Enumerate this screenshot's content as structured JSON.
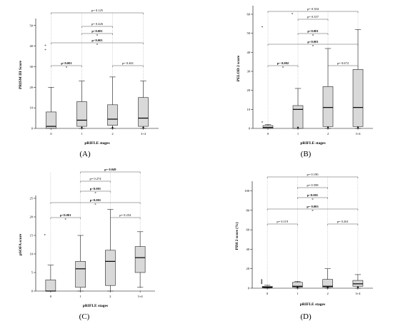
{
  "chart_data": [
    {
      "panel_label": "(A)",
      "type": "box",
      "xlabel": "pRIFLE stages",
      "ylabel": "PRISM III Score",
      "categories": [
        "0",
        "1",
        "2",
        "3+4"
      ],
      "ylim": [
        0,
        52
      ],
      "yticks": [
        0,
        10,
        20,
        30,
        40,
        50
      ],
      "yticklabels": [
        "0",
        "10",
        "20",
        "30",
        "40",
        "50"
      ],
      "boxes": [
        {
          "min": 0,
          "q1": 0,
          "median": 1,
          "q3": 8,
          "max": 20
        },
        {
          "min": 0,
          "q1": 1,
          "median": 4,
          "q3": 13,
          "max": 23
        },
        {
          "min": 0,
          "q1": 1.5,
          "median": 4.5,
          "q3": 11.5,
          "max": 25
        },
        {
          "min": 0,
          "q1": 1,
          "median": 5,
          "q3": 15,
          "max": 23
        }
      ],
      "outliers": [
        [
          0,
          38
        ],
        [
          0,
          40
        ]
      ],
      "below_markers": [
        1,
        2,
        3
      ],
      "comparisons": [
        {
          "from": 0,
          "to": 3,
          "label": "p= 0.125",
          "bold": false,
          "asterisk": false
        },
        {
          "from": 1,
          "to": 2,
          "label": "p= 0.426",
          "bold": false,
          "asterisk": false
        },
        {
          "from": 1,
          "to": 2,
          "label": "p<0.001",
          "bold": true,
          "asterisk": true
        },
        {
          "from": 0,
          "to": 3,
          "label": "p<0.001",
          "bold": true,
          "asterisk": true
        },
        {
          "from": 0,
          "to": 1,
          "label": "p<0.001",
          "bold": true,
          "asterisk": true
        },
        {
          "from": 2,
          "to": 3,
          "label": "p= 0.461",
          "bold": false,
          "asterisk": false
        }
      ]
    },
    {
      "panel_label": "(B)",
      "type": "box",
      "xlabel": "pRIFLE stages",
      "ylabel": "PELOD 2 score",
      "categories": [
        "0",
        "1",
        "2",
        "3+4"
      ],
      "ylim": [
        0,
        63
      ],
      "yticks": [
        0,
        10,
        20,
        30,
        40,
        50,
        60
      ],
      "yticklabels": [
        "0",
        "10",
        "20",
        "30",
        "40",
        "50",
        "60"
      ],
      "boxes": [
        {
          "min": 0,
          "q1": 0,
          "median": 0.5,
          "q3": 1.5,
          "max": 2
        },
        {
          "min": 0,
          "q1": 0,
          "median": 10,
          "q3": 12,
          "max": 21
        },
        {
          "min": 0,
          "q1": 1,
          "median": 11,
          "q3": 22,
          "max": 42
        },
        {
          "min": 0,
          "q1": 1,
          "median": 11,
          "q3": 31,
          "max": 52
        }
      ],
      "outliers": [
        [
          0,
          3
        ],
        [
          0,
          53
        ],
        [
          1,
          60
        ]
      ],
      "below_markers": [
        1,
        2,
        3
      ],
      "comparisons": [
        {
          "from": 0,
          "to": 3,
          "label": "p= 0.304",
          "bold": false,
          "asterisk": false
        },
        {
          "from": 1,
          "to": 2,
          "label": "p= 0.357",
          "bold": false,
          "asterisk": false
        },
        {
          "from": 1,
          "to": 2,
          "label": "p<0.001",
          "bold": true,
          "asterisk": true
        },
        {
          "from": 0,
          "to": 3,
          "label": "p<0.001",
          "bold": true,
          "asterisk": true
        },
        {
          "from": 0,
          "to": 1,
          "label": "p= 0.002",
          "bold": true,
          "asterisk": true
        },
        {
          "from": 2,
          "to": 3,
          "label": "p= 0.672",
          "bold": false,
          "asterisk": false
        }
      ]
    },
    {
      "panel_label": "(C)",
      "type": "box",
      "xlabel": "pRIFLE stages",
      "ylabel": "pSOFA score",
      "categories": [
        "0",
        "1",
        "2",
        "3+4"
      ],
      "ylim": [
        0,
        25
      ],
      "yticks": [
        0,
        5,
        10,
        15,
        20,
        25
      ],
      "yticklabels": [
        "0",
        "5",
        "10",
        "15",
        "20",
        "25"
      ],
      "boxes": [
        {
          "min": 0,
          "q1": 0,
          "median": 0,
          "q3": 3,
          "max": 7
        },
        {
          "min": 0,
          "q1": 1,
          "median": 6,
          "q3": 8,
          "max": 15
        },
        {
          "min": 0,
          "q1": 1.5,
          "median": 8,
          "q3": 11,
          "max": 22
        },
        {
          "min": 1,
          "q1": 5,
          "median": 9,
          "q3": 12,
          "max": 16
        }
      ],
      "outliers": [
        [
          0,
          15
        ]
      ],
      "below_markers": [],
      "comparisons": [
        {
          "from": 1,
          "to": 3,
          "label": "p= 0.049",
          "bold": true,
          "asterisk": false
        },
        {
          "from": 1,
          "to": 2,
          "label": "p= 0.274",
          "bold": false,
          "asterisk": false
        },
        {
          "from": 1,
          "to": 2,
          "label": "p<0.001",
          "bold": true,
          "asterisk": true
        },
        {
          "from": 0,
          "to": 3,
          "label": "p<0.001",
          "bold": true,
          "asterisk": true
        },
        {
          "from": 0,
          "to": 1,
          "label": "p<0.001",
          "bold": true,
          "asterisk": true
        },
        {
          "from": 2,
          "to": 3,
          "label": "p= 0.254",
          "bold": false,
          "asterisk": false
        }
      ]
    },
    {
      "panel_label": "(D)",
      "type": "box",
      "xlabel": "pRIFLE stages",
      "ylabel": "PIM 2 score (%)",
      "categories": [
        "0",
        "1",
        "2",
        "3+4"
      ],
      "ylim": [
        0,
        107
      ],
      "yticks": [
        0,
        20,
        40,
        60,
        80,
        100
      ],
      "yticklabels": [
        "0",
        "20",
        "40",
        "60",
        "80",
        "100"
      ],
      "boxes": [
        {
          "min": 0,
          "q1": 0.5,
          "median": 1,
          "q3": 2,
          "max": 3
        },
        {
          "min": 0,
          "q1": 1,
          "median": 2,
          "q3": 6,
          "max": 7
        },
        {
          "min": 0,
          "q1": 1,
          "median": 2,
          "q3": 9,
          "max": 20
        },
        {
          "min": 0,
          "q1": 2,
          "median": 4.5,
          "q3": 8,
          "max": 14
        }
      ],
      "outliers": [
        [
          0,
          4
        ],
        [
          0,
          5
        ],
        [
          0,
          6
        ],
        [
          0,
          7
        ],
        [
          0,
          8
        ]
      ],
      "below_markers": [
        1,
        2,
        3
      ],
      "comparisons": [
        {
          "from": 0,
          "to": 3,
          "label": "p= 0.190",
          "bold": false,
          "asterisk": false
        },
        {
          "from": 1,
          "to": 2,
          "label": "p= 0.598",
          "bold": false,
          "asterisk": false
        },
        {
          "from": 1,
          "to": 2,
          "label": "p<0.001",
          "bold": true,
          "asterisk": true
        },
        {
          "from": 0,
          "to": 3,
          "label": "p= 0.003",
          "bold": true,
          "asterisk": true
        },
        {
          "from": 0,
          "to": 1,
          "label": "p= 0.119",
          "bold": false,
          "asterisk": false
        },
        {
          "from": 2,
          "to": 3,
          "label": "p= 0.261",
          "bold": false,
          "asterisk": false
        }
      ]
    }
  ],
  "colors": {
    "box_fill": "#d9d9d9",
    "box_stroke": "#222222",
    "bracket": "#555555",
    "text": "#000000"
  }
}
